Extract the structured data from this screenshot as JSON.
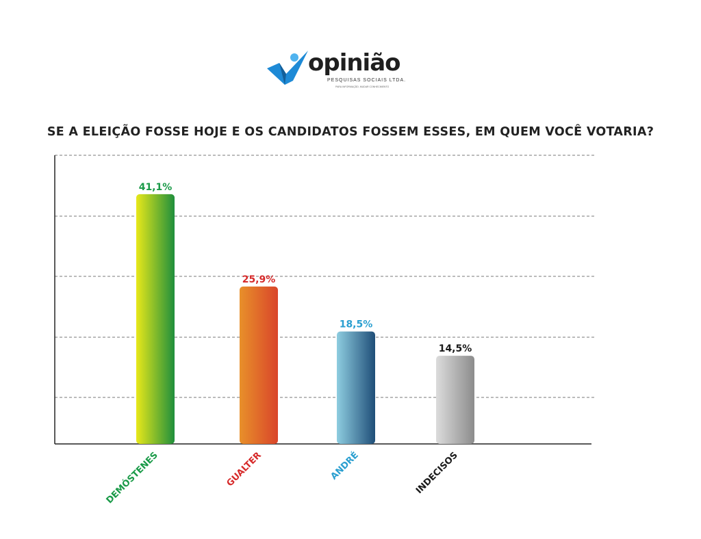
{
  "logo": {
    "brand": "opinião",
    "subtitle": "PESQUISAS SOCIAIS LTDA.",
    "tagline": "PARA INFORMAÇÃO, MUDAR CONHECIMENTO",
    "mark_color": "#1e8ad6"
  },
  "chart_data": {
    "type": "bar",
    "title": "SE A ELEIÇÃO FOSSE HOJE E OS CANDIDATOS FOSSEM ESSES, EM QUEM VOCÊ VOTARIA?",
    "categories": [
      "DEMÓSTENES",
      "GUALTER",
      "ANDRÉ",
      "INDECISOS"
    ],
    "values": [
      41.1,
      25.9,
      18.5,
      14.5
    ],
    "value_labels": [
      "41,1%",
      "25,9%",
      "18,5%",
      "14,5%"
    ],
    "label_colors": [
      "#1a9a48",
      "#d62a2a",
      "#2a9fd0",
      "#1a1a1a"
    ],
    "bar_gradients": [
      [
        "#e8e81a",
        "#1f8f3c"
      ],
      [
        "#e8902a",
        "#d9452a"
      ],
      [
        "#8ecde0",
        "#1f4e78"
      ],
      [
        "#dcdcdc",
        "#8c8c8c"
      ]
    ],
    "ylim": [
      0,
      47.5
    ],
    "grid": true,
    "xlabel": "",
    "ylabel": ""
  }
}
